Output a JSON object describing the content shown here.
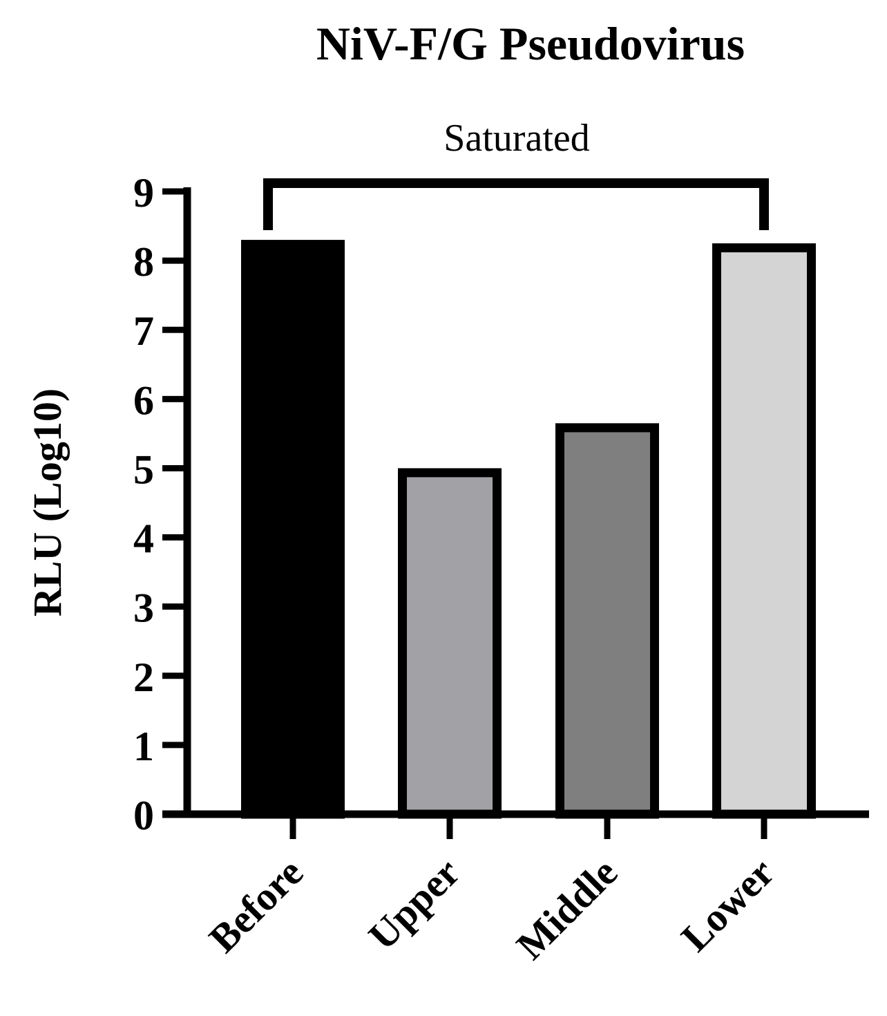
{
  "chart_data": {
    "type": "bar",
    "title": "NiV-F/G Pseudovirus",
    "xlabel": "",
    "ylabel": "RLU (Log10)",
    "ylim": [
      0,
      9
    ],
    "yticks": [
      "0",
      "1",
      "2",
      "3",
      "4",
      "5",
      "6",
      "7",
      "8",
      "9"
    ],
    "categories": [
      "Before",
      "Upper",
      "Middle",
      "Lower"
    ],
    "values": [
      8.3,
      5.0,
      5.65,
      8.25
    ],
    "colors": [
      "#000000",
      "#a2a1a6",
      "#7f7f7f",
      "#d4d4d4"
    ],
    "edge_color": "#000000",
    "grid": false,
    "annotation": {
      "label": "Saturated",
      "from_category": "Before",
      "to_category": "Lower"
    }
  }
}
